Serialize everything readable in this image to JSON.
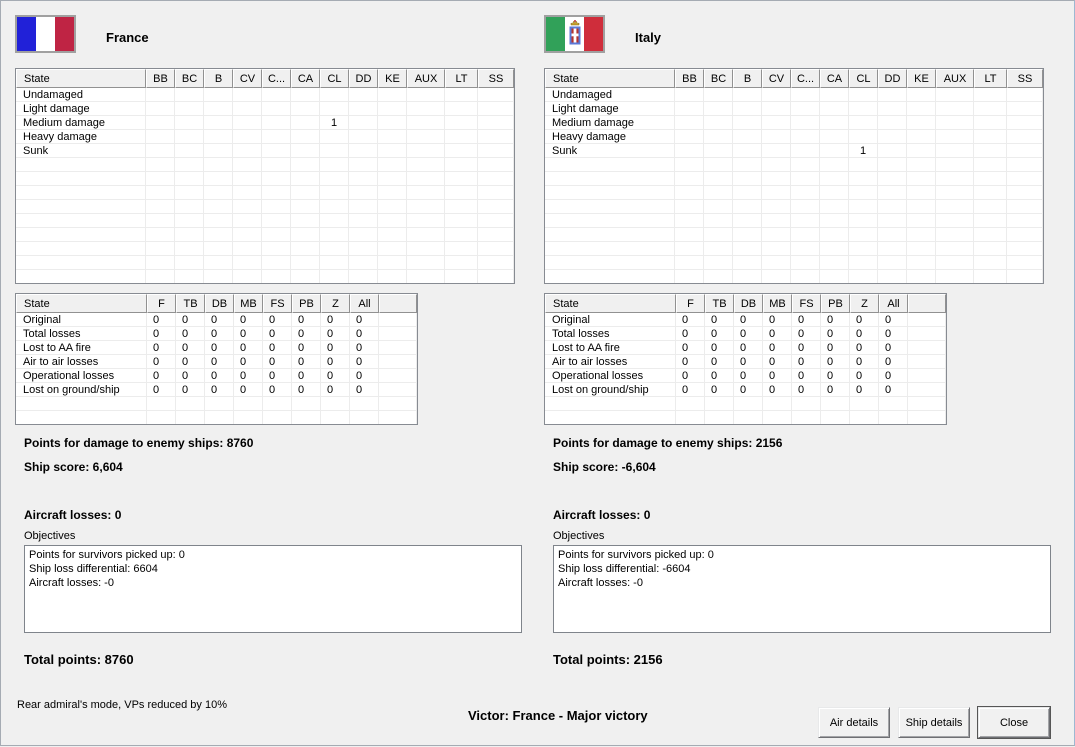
{
  "colors": {
    "window_bg": "#f0f0f0",
    "france_blue": "#2121d8",
    "france_white": "#ffffff",
    "france_red": "#bf2444",
    "italy_green": "#31a159",
    "italy_white": "#ffffff",
    "italy_red": "#cf2d3b"
  },
  "ship_table": {
    "headers": [
      "State",
      "BB",
      "BC",
      "B",
      "CV",
      "C...",
      "CA",
      "CL",
      "DD",
      "KE",
      "AUX",
      "LT",
      "SS"
    ],
    "row_labels": [
      "Undamaged",
      "Light damage",
      "Medium damage",
      "Heavy damage",
      "Sunk"
    ]
  },
  "aircraft_table": {
    "headers": [
      "State",
      "F",
      "TB",
      "DB",
      "MB",
      "FS",
      "PB",
      "Z",
      "All",
      ""
    ],
    "row_labels": [
      "Original",
      "Total losses",
      "Lost to AA fire",
      "Air to air losses",
      "Operational losses",
      "Lost on ground/ship"
    ]
  },
  "sides": [
    {
      "country": "France",
      "ship_values": [
        [
          "",
          "",
          "",
          "",
          "",
          "",
          "",
          "",
          "",
          "",
          "",
          ""
        ],
        [
          "",
          "",
          "",
          "",
          "",
          "",
          "",
          "",
          "",
          "",
          "",
          ""
        ],
        [
          "",
          "",
          "",
          "",
          "",
          "",
          "1",
          "",
          "",
          "",
          "",
          ""
        ],
        [
          "",
          "",
          "",
          "",
          "",
          "",
          "",
          "",
          "",
          "",
          "",
          ""
        ],
        [
          "",
          "",
          "",
          "",
          "",
          "",
          "",
          "",
          "",
          "",
          "",
          ""
        ]
      ],
      "aircraft_values": [
        [
          "0",
          "0",
          "0",
          "0",
          "0",
          "0",
          "0",
          "0"
        ],
        [
          "0",
          "0",
          "0",
          "0",
          "0",
          "0",
          "0",
          "0"
        ],
        [
          "0",
          "0",
          "0",
          "0",
          "0",
          "0",
          "0",
          "0"
        ],
        [
          "0",
          "0",
          "0",
          "0",
          "0",
          "0",
          "0",
          "0"
        ],
        [
          "0",
          "0",
          "0",
          "0",
          "0",
          "0",
          "0",
          "0"
        ],
        [
          "0",
          "0",
          "0",
          "0",
          "0",
          "0",
          "0",
          "0"
        ]
      ],
      "points_damage": "Points for damage to enemy ships: 8760",
      "ship_score": "Ship score: 6,604",
      "aircraft_losses": "Aircraft losses: 0",
      "objectives_label": "Objectives",
      "objectives_lines": [
        "Points for survivors picked up: 0",
        "Ship loss differential: 6604",
        "Aircraft losses: -0"
      ],
      "total_points": "Total points: 8760"
    },
    {
      "country": "Italy",
      "ship_values": [
        [
          "",
          "",
          "",
          "",
          "",
          "",
          "",
          "",
          "",
          "",
          "",
          ""
        ],
        [
          "",
          "",
          "",
          "",
          "",
          "",
          "",
          "",
          "",
          "",
          "",
          ""
        ],
        [
          "",
          "",
          "",
          "",
          "",
          "",
          "",
          "",
          "",
          "",
          "",
          ""
        ],
        [
          "",
          "",
          "",
          "",
          "",
          "",
          "",
          "",
          "",
          "",
          "",
          ""
        ],
        [
          "",
          "",
          "",
          "",
          "",
          "",
          "1",
          "",
          "",
          "",
          "",
          ""
        ]
      ],
      "aircraft_values": [
        [
          "0",
          "0",
          "0",
          "0",
          "0",
          "0",
          "0",
          "0"
        ],
        [
          "0",
          "0",
          "0",
          "0",
          "0",
          "0",
          "0",
          "0"
        ],
        [
          "0",
          "0",
          "0",
          "0",
          "0",
          "0",
          "0",
          "0"
        ],
        [
          "0",
          "0",
          "0",
          "0",
          "0",
          "0",
          "0",
          "0"
        ],
        [
          "0",
          "0",
          "0",
          "0",
          "0",
          "0",
          "0",
          "0"
        ],
        [
          "0",
          "0",
          "0",
          "0",
          "0",
          "0",
          "0",
          "0"
        ]
      ],
      "points_damage": "Points for damage to enemy ships: 2156",
      "ship_score": "Ship score: -6,604",
      "aircraft_losses": "Aircraft losses: 0",
      "objectives_label": "Objectives",
      "objectives_lines": [
        "Points for survivors picked up: 0",
        "Ship loss differential: -6604",
        "Aircraft losses: -0"
      ],
      "total_points": "Total points: 2156"
    }
  ],
  "footer": {
    "mode_note": "Rear admiral's mode, VPs reduced by 10%",
    "victor_text": "Victor: France - Major victory",
    "air_details_label": "Air details",
    "ship_details_label": "Ship details",
    "close_label": "Close"
  }
}
